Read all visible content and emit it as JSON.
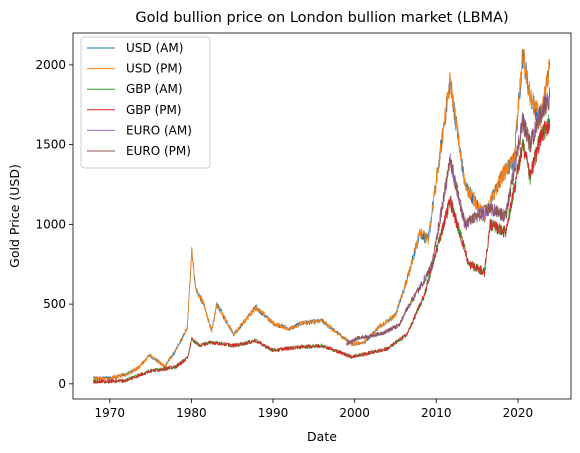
{
  "chart_data": {
    "type": "line",
    "title": "Gold bullion price on London bullion market (LBMA)",
    "xlabel": "Date",
    "ylabel": "Gold Price (USD)",
    "xlim": [
      1965.5,
      2026.5
    ],
    "ylim": [
      -95,
      2200
    ],
    "x_ticks": [
      1970,
      1980,
      1990,
      2000,
      2010,
      2020
    ],
    "y_ticks": [
      0,
      500,
      1000,
      1500,
      2000
    ],
    "grid": false,
    "legend": "top-left",
    "series": [
      {
        "name": "USD (AM)",
        "color": "#1f77b4",
        "x": [
          1968.0,
          1970.0,
          1972.0,
          1973.5,
          1974.9,
          1976.7,
          1978.0,
          1979.5,
          1980.05,
          1980.5,
          1981.5,
          1982.5,
          1983.1,
          1985.2,
          1987.9,
          1990.0,
          1992.0,
          1993.5,
          1996.0,
          1999.6,
          2001.2,
          2003.0,
          2005.0,
          2006.4,
          2008.0,
          2009.0,
          2011.7,
          2013.5,
          2015.9,
          2018.0,
          2019.5,
          2020.6,
          2021.5,
          2022.8,
          2023.9
        ],
        "y": [
          35,
          36,
          58,
          100,
          180,
          110,
          200,
          350,
          850,
          600,
          500,
          330,
          500,
          310,
          480,
          380,
          345,
          380,
          395,
          250,
          260,
          360,
          430,
          650,
          950,
          900,
          1900,
          1250,
          1050,
          1300,
          1400,
          2070,
          1800,
          1650,
          2000
        ]
      },
      {
        "name": "USD (PM)",
        "color": "#ff7f0e",
        "x": [
          1968.0,
          1970.0,
          1972.0,
          1973.5,
          1974.9,
          1976.7,
          1978.0,
          1979.5,
          1980.05,
          1980.5,
          1981.5,
          1982.5,
          1983.1,
          1985.2,
          1987.9,
          1990.0,
          1992.0,
          1993.5,
          1996.0,
          1999.6,
          2001.2,
          2003.0,
          2005.0,
          2006.4,
          2008.0,
          2009.0,
          2011.7,
          2013.5,
          2015.9,
          2018.0,
          2019.5,
          2020.6,
          2021.5,
          2022.8,
          2023.9
        ],
        "y": [
          35,
          36,
          58,
          100,
          180,
          110,
          200,
          350,
          850,
          600,
          500,
          330,
          500,
          310,
          480,
          380,
          345,
          380,
          395,
          250,
          260,
          360,
          430,
          650,
          950,
          900,
          1900,
          1250,
          1050,
          1300,
          1400,
          2070,
          1800,
          1650,
          2000
        ]
      },
      {
        "name": "GBP (AM)",
        "color": "#2ca02c",
        "x": [
          1968.0,
          1970.0,
          1972.0,
          1974.9,
          1978.0,
          1979.5,
          1980.05,
          1981.0,
          1982.5,
          1985.2,
          1987.9,
          1990.0,
          1993.0,
          1996.0,
          1999.6,
          2001.5,
          2004.0,
          2006.4,
          2008.5,
          2011.7,
          2014.0,
          2015.9,
          2016.6,
          2018.5,
          2020.6,
          2021.5,
          2022.8,
          2023.9
        ],
        "y": [
          15,
          15,
          22,
          80,
          105,
          160,
          280,
          240,
          260,
          240,
          270,
          210,
          230,
          240,
          170,
          190,
          220,
          310,
          550,
          1150,
          750,
          700,
          1000,
          950,
          1500,
          1300,
          1550,
          1640
        ]
      },
      {
        "name": "GBP (PM)",
        "color": "#d62728",
        "x": [
          1968.0,
          1970.0,
          1972.0,
          1974.9,
          1978.0,
          1979.5,
          1980.05,
          1981.0,
          1982.5,
          1985.2,
          1987.9,
          1990.0,
          1993.0,
          1996.0,
          1999.6,
          2001.5,
          2004.0,
          2006.4,
          2008.5,
          2011.7,
          2014.0,
          2015.9,
          2016.6,
          2018.5,
          2020.6,
          2021.5,
          2022.8,
          2023.9
        ],
        "y": [
          15,
          15,
          22,
          80,
          105,
          160,
          280,
          240,
          260,
          240,
          270,
          210,
          230,
          240,
          170,
          190,
          220,
          310,
          550,
          1150,
          750,
          700,
          1000,
          950,
          1500,
          1300,
          1550,
          1640
        ]
      },
      {
        "name": "EURO (AM)",
        "color": "#9467bd",
        "x": [
          1999.0,
          2000.5,
          2002.0,
          2003.5,
          2005.5,
          2006.5,
          2008.5,
          2009.5,
          2011.7,
          2013.5,
          2015.0,
          2016.5,
          2018.5,
          2020.6,
          2021.5,
          2022.8,
          2023.9
        ],
        "y": [
          250,
          290,
          300,
          320,
          370,
          480,
          650,
          750,
          1400,
          1000,
          1050,
          1100,
          1050,
          1650,
          1500,
          1700,
          1800
        ]
      },
      {
        "name": "EURO (PM)",
        "color": "#8c564b",
        "x": [
          1999.0,
          2000.5,
          2002.0,
          2003.5,
          2005.5,
          2006.5,
          2008.5,
          2009.5,
          2011.7,
          2013.5,
          2015.0,
          2016.5,
          2018.5,
          2020.6,
          2021.5,
          2022.8,
          2023.9
        ],
        "y": [
          250,
          290,
          300,
          320,
          370,
          480,
          650,
          750,
          1400,
          1000,
          1050,
          1100,
          1050,
          1650,
          1500,
          1700,
          1800
        ]
      }
    ]
  }
}
